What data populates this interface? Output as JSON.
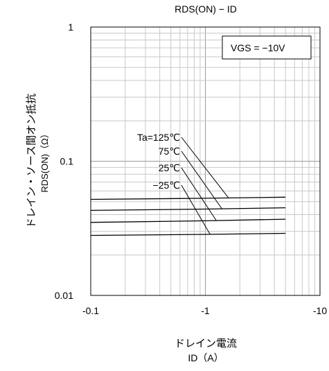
{
  "chart_data": {
    "type": "line",
    "title": "RDS(ON) − ID",
    "ylabel_line1": "ドレイン・ソース間オン抵抗",
    "ylabel_line2": "RDS(ON)（Ω）",
    "xlabel_line1": "ドレイン電流",
    "xlabel_line2": "ID（A）",
    "x_scale": "log",
    "y_scale": "log",
    "x_reversed_negative": true,
    "xlim": [
      -0.1,
      -10
    ],
    "ylim": [
      0.01,
      1
    ],
    "x_ticks": [
      {
        "value": -0.1,
        "label": "-0.1"
      },
      {
        "value": -1,
        "label": "-1"
      },
      {
        "value": -10,
        "label": "-10"
      }
    ],
    "y_ticks": [
      {
        "value": 0.01,
        "label": "0.01"
      },
      {
        "value": 0.1,
        "label": "0.1"
      },
      {
        "value": 1,
        "label": "1"
      }
    ],
    "grid": true,
    "legend_box": "VGS = −10V",
    "series": [
      {
        "name": "Ta=125℃",
        "x": [
          -0.1,
          -1,
          -5
        ],
        "y": [
          0.052,
          0.053,
          0.054
        ]
      },
      {
        "name": "75℃",
        "x": [
          -0.1,
          -1,
          -5
        ],
        "y": [
          0.043,
          0.044,
          0.045
        ]
      },
      {
        "name": "25℃",
        "x": [
          -0.1,
          -1,
          -5
        ],
        "y": [
          0.035,
          0.036,
          0.037
        ]
      },
      {
        "name": "−25℃",
        "x": [
          -0.1,
          -1,
          -5
        ],
        "y": [
          0.028,
          0.0285,
          0.029
        ]
      }
    ],
    "annotations": [
      {
        "label": "Ta=125℃",
        "series": 0,
        "point_x": -1.6
      },
      {
        "label": "75℃",
        "series": 1,
        "point_x": -1.4
      },
      {
        "label": "25℃",
        "series": 2,
        "point_x": -1.25
      },
      {
        "label": "−25℃",
        "series": 3,
        "point_x": -1.1
      }
    ]
  }
}
